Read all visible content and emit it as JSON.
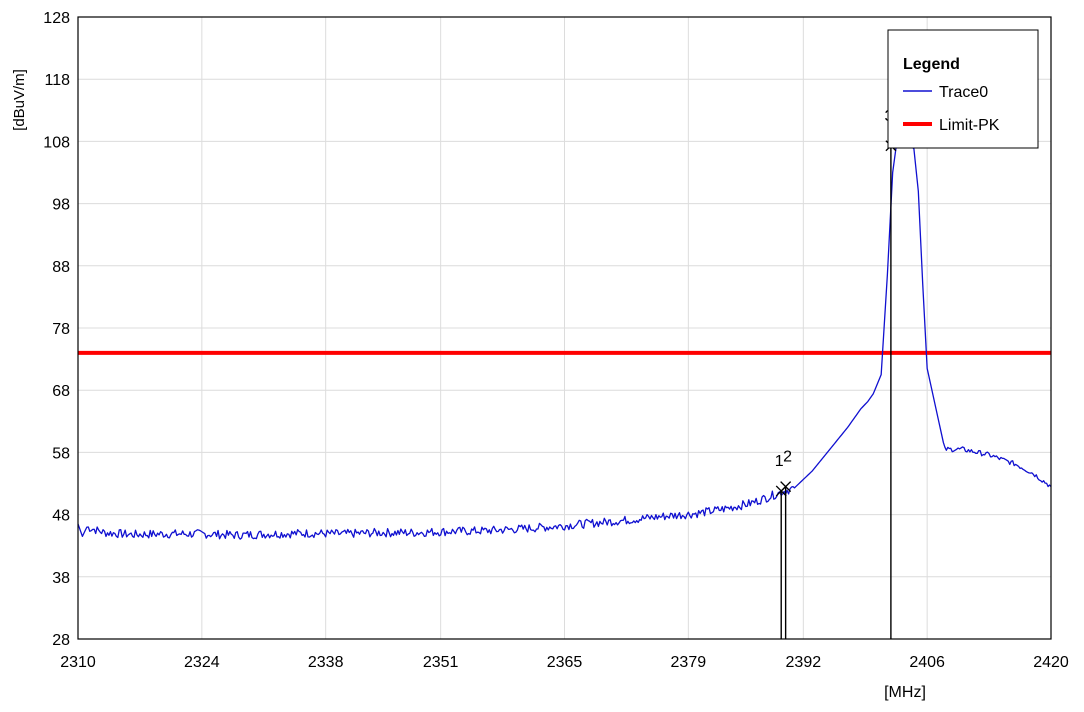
{
  "chart_data": {
    "type": "line",
    "title": "",
    "xlabel": "[MHz]",
    "ylabel": "[dBuV/m]",
    "xlim": [
      2310,
      2420
    ],
    "ylim": [
      28,
      128
    ],
    "x_ticks": [
      2310,
      2324,
      2338,
      2351,
      2365,
      2379,
      2392,
      2406,
      2420
    ],
    "x_tick_labels": [
      "2310",
      "2324",
      "2338",
      "2351",
      "2365",
      "2379",
      "2392",
      "2406",
      "2420"
    ],
    "y_ticks": [
      28,
      38,
      48,
      58,
      68,
      78,
      88,
      98,
      108,
      118,
      128
    ],
    "y_tick_labels": [
      "28",
      "38",
      "48",
      "58",
      "68",
      "78",
      "88",
      "98",
      "108",
      "118",
      "128"
    ],
    "grid": true,
    "legend": {
      "title": "Legend",
      "position": "top-right",
      "entries": [
        {
          "name": "Trace0",
          "color": "#1010d0"
        },
        {
          "name": "Limit-PK",
          "color": "#ff0000"
        }
      ]
    },
    "series": [
      {
        "name": "Trace0",
        "color": "#1010d0",
        "x": [
          2310,
          2310.5,
          2311,
          2313,
          2316,
          2320,
          2324,
          2328,
          2332,
          2336,
          2340,
          2344,
          2348,
          2352,
          2356,
          2360,
          2364,
          2368,
          2372,
          2376,
          2380,
          2383,
          2386,
          2388,
          2389.5,
          2391,
          2393,
          2395,
          2397,
          2398.5,
          2399.3,
          2399.9,
          2400.8,
          2401.5,
          2402.1,
          2402.5,
          2403,
          2403.5,
          2404,
          2404.5,
          2405,
          2405.5,
          2406,
          2408,
          2410,
          2413,
          2416,
          2418,
          2420
        ],
        "y": [
          46.5,
          44.5,
          46,
          45.1,
          44.8,
          44.9,
          44.9,
          44.7,
          44.9,
          45,
          44.9,
          45.1,
          45.1,
          45.3,
          45.4,
          45.7,
          46.1,
          46.6,
          47.1,
          47.7,
          48.2,
          48.9,
          49.8,
          50.8,
          51.6,
          52.3,
          55,
          58.5,
          62,
          65,
          66.2,
          67.4,
          70.5,
          86.5,
          103,
          107.2,
          107.4,
          107.2,
          107.5,
          106.8,
          100,
          85,
          71.5,
          58.5,
          58.5,
          57.6,
          56.1,
          54.6,
          52.5
        ]
      },
      {
        "name": "Limit-PK",
        "color": "#ff0000",
        "x": [
          2310,
          2420
        ],
        "y": [
          74,
          74
        ]
      }
    ],
    "markers": [
      {
        "label": "1",
        "x": 2389.5,
        "y": 51.8
      },
      {
        "label": "2",
        "x": 2390.0,
        "y": 52.5
      },
      {
        "label": "3",
        "x": 2401.9,
        "y": 107.3
      }
    ]
  }
}
